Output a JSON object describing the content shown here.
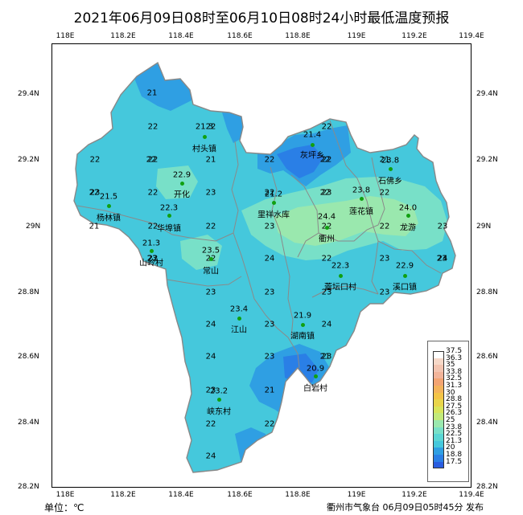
{
  "title": "2021年06月09日08时至06月10日08时24小时最低温度预报",
  "unit": "单位：℃",
  "publisher": "衢州市气象台 06月09日05时45分 发布",
  "lon_ticks": [
    "118E",
    "118.2E",
    "118.4E",
    "118.6E",
    "118.8E",
    "119E",
    "119.2E",
    "119.4E"
  ],
  "lat_ticks": [
    "29.4N",
    "29.2N",
    "29N",
    "28.8N",
    "28.6N",
    "28.4N",
    "28.2N"
  ],
  "colors": {
    "region_base": "#45c8dc",
    "region_cool": "#2f9fe3",
    "region_cooler": "#2a7fe6",
    "region_warm": "#78e0c8",
    "region_warmer": "#9ae8ae",
    "border_outer": "#888888",
    "station": "#10a010"
  },
  "legend": {
    "levels": [
      "37.5",
      "36.3",
      "35",
      "33.8",
      "32.5",
      "31.3",
      "30",
      "28.8",
      "27.5",
      "26.3",
      "25",
      "23.8",
      "22.5",
      "21.3",
      "20",
      "18.8",
      "17.5"
    ],
    "colors": [
      "#ffffff",
      "#f6d8c8",
      "#f3c4b0",
      "#f2b49a",
      "#f3a472",
      "#f4b35a",
      "#f3c446",
      "#e9d54a",
      "#d8e55a",
      "#c2ea7a",
      "#9ae8ae",
      "#78e0c8",
      "#5ad6d4",
      "#45c8dc",
      "#2f9fe3",
      "#2a7fe6",
      "#2a5de0"
    ]
  },
  "stations": [
    {
      "name": "村头镇",
      "value": "21.3"
    },
    {
      "name": "开化",
      "value": "22.9"
    },
    {
      "name": "杨林镇",
      "value": "21.5"
    },
    {
      "name": "华埠镇",
      "value": "22.3"
    },
    {
      "name": "山岭村",
      "value": "21.3"
    },
    {
      "name": "常山",
      "value": "23.5"
    },
    {
      "name": "灰坪乡",
      "value": "21.4"
    },
    {
      "name": "里祥水库",
      "value": "21.2"
    },
    {
      "name": "莲花镇",
      "value": "23.8"
    },
    {
      "name": "衢州",
      "value": "24.4"
    },
    {
      "name": "石佛乡",
      "value": "23.8"
    },
    {
      "name": "龙游",
      "value": "24.0"
    },
    {
      "name": "蕾坛口村",
      "value": "22.3"
    },
    {
      "name": "溪口镇",
      "value": "22.9"
    },
    {
      "name": "江山",
      "value": "23.4"
    },
    {
      "name": "湖南镇",
      "value": "21.9"
    },
    {
      "name": "白岩村",
      "value": "20.9"
    },
    {
      "name": "峡东村",
      "value": "23.2"
    }
  ],
  "grid_values": [
    "21",
    "22",
    "22",
    "22",
    "22",
    "21",
    "22",
    "22",
    "22",
    "23",
    "22",
    "22",
    "21",
    "22",
    "23",
    "22",
    "23",
    "22",
    "21",
    "22",
    "22",
    "22",
    "23",
    "22",
    "22",
    "24",
    "22",
    "23",
    "23",
    "23",
    "23",
    "23",
    "23",
    "24",
    "23",
    "24",
    "24",
    "23",
    "23",
    "23",
    "21",
    "22",
    "22",
    "24",
    "23",
    "23",
    "24",
    "22",
    "22",
    "22",
    "22",
    "23",
    "23",
    "23",
    "22",
    "22",
    "22",
    "23",
    "21",
    "21",
    "21",
    "23",
    "21",
    "21",
    "23",
    "23",
    "22",
    "23",
    "21",
    "23",
    "23"
  ]
}
